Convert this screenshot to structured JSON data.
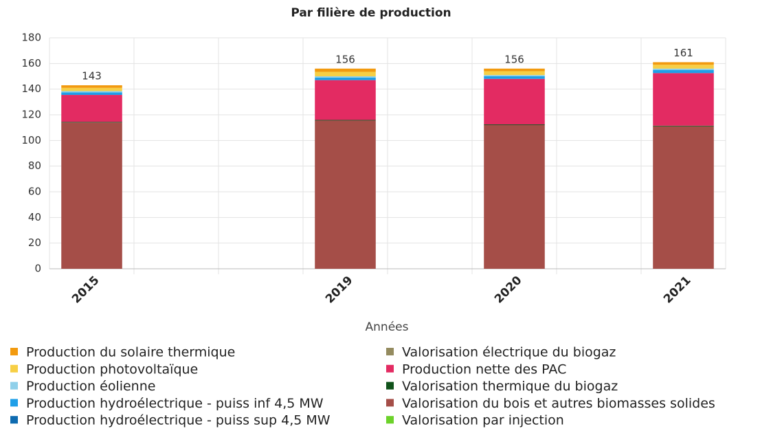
{
  "chart_data": {
    "type": "stacked_bar",
    "title": "Par filière de production",
    "x_label": "Années",
    "categories": [
      "2015",
      null,
      null,
      "2019",
      null,
      "2020",
      null,
      "2021"
    ],
    "ylim": [
      0,
      180
    ],
    "yticks": [
      0,
      20,
      40,
      60,
      80,
      100,
      120,
      140,
      160,
      180
    ],
    "grid": true,
    "totals": [
      143,
      null,
      null,
      156,
      null,
      156,
      null,
      161
    ],
    "series": [
      {
        "name": "Production du solaire thermique",
        "color": "#f29a0f",
        "values": [
          2,
          null,
          null,
          2.5,
          null,
          2,
          null,
          2
        ]
      },
      {
        "name": "Production photovoltaïque",
        "color": "#f7cf45",
        "values": [
          2.5,
          null,
          null,
          3.5,
          null,
          3,
          null,
          3
        ]
      },
      {
        "name": "Production éolienne",
        "color": "#8fd0ea",
        "values": [
          1,
          null,
          null,
          1,
          null,
          1,
          null,
          1
        ]
      },
      {
        "name": "Production hydroélectrique - puiss inf 4,5 MW",
        "color": "#1f9fe8",
        "values": [
          2,
          null,
          null,
          2,
          null,
          2,
          null,
          2.5
        ]
      },
      {
        "name": "Production hydroélectrique - puiss sup 4,5 MW",
        "color": "#0e6bb0",
        "values": [
          0,
          null,
          null,
          0,
          null,
          0,
          null,
          0
        ]
      },
      {
        "name": "Valorisation électrique du biogaz",
        "color": "#948b5f",
        "values": [
          0,
          null,
          null,
          0,
          null,
          0,
          null,
          0
        ]
      },
      {
        "name": "Production nette des PAC",
        "color": "#e32b62",
        "values": [
          21,
          null,
          null,
          31,
          null,
          35.5,
          null,
          41
        ]
      },
      {
        "name": "Valorisation thermique du biogaz",
        "color": "#10521a",
        "values": [
          0.5,
          null,
          null,
          0.5,
          null,
          0.5,
          null,
          0.5
        ]
      },
      {
        "name": "Valorisation du bois et autres biomasses solides",
        "color": "#a54e48",
        "values": [
          114,
          null,
          null,
          115.5,
          null,
          112,
          null,
          111
        ]
      },
      {
        "name": "Valorisation par injection",
        "color": "#6cd22a",
        "values": [
          0,
          null,
          null,
          0,
          null,
          0,
          null,
          0
        ]
      }
    ]
  }
}
